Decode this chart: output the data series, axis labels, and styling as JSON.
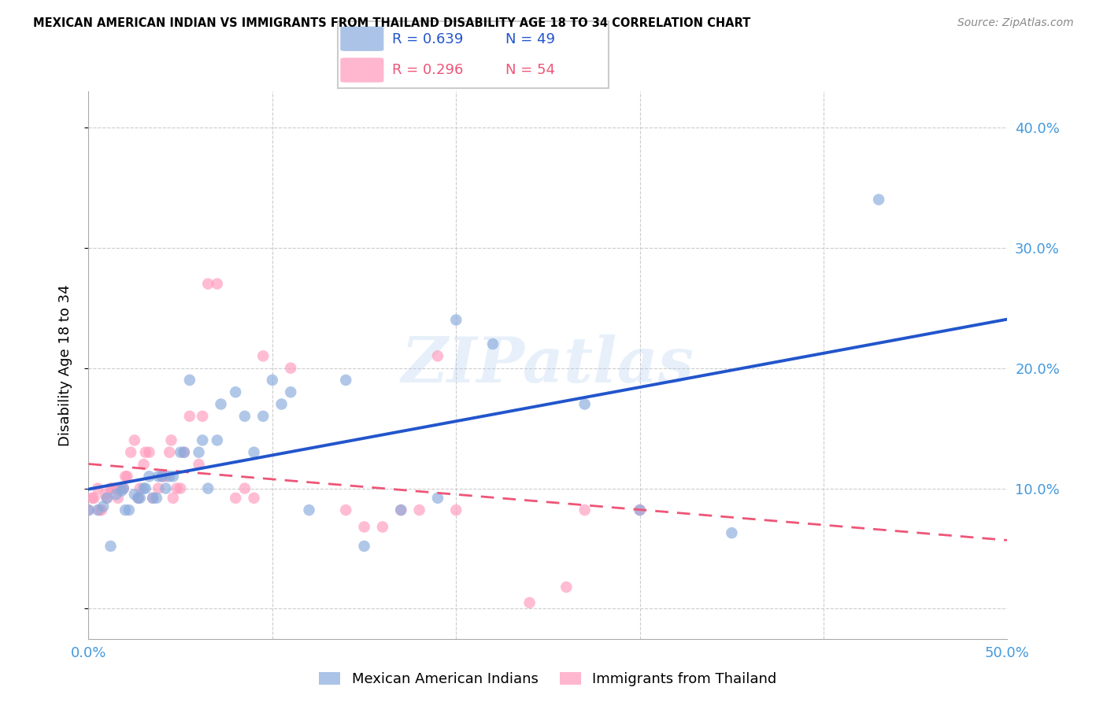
{
  "title": "MEXICAN AMERICAN INDIAN VS IMMIGRANTS FROM THAILAND DISABILITY AGE 18 TO 34 CORRELATION CHART",
  "source": "Source: ZipAtlas.com",
  "ylabel": "Disability Age 18 to 34",
  "xlim": [
    0.0,
    0.5
  ],
  "ylim": [
    -0.025,
    0.43
  ],
  "ytick_vals": [
    0.0,
    0.1,
    0.2,
    0.3,
    0.4
  ],
  "ytick_labels": [
    "",
    "10.0%",
    "20.0%",
    "30.0%",
    "40.0%"
  ],
  "xtick_vals": [
    0.0,
    0.1,
    0.2,
    0.3,
    0.4,
    0.5
  ],
  "xtick_labels": [
    "0.0%",
    "",
    "",
    "",
    "",
    "50.0%"
  ],
  "legend1_r": "0.639",
  "legend1_n": "49",
  "legend2_r": "0.296",
  "legend2_n": "54",
  "blue_color": "#88AADD",
  "pink_color": "#FF99BB",
  "blue_line_color": "#2255CC",
  "pink_line_color": "#EE5577",
  "tick_color": "#4499DD",
  "watermark": "ZIPatlas",
  "series1_label": "Mexican American Indians",
  "series2_label": "Immigrants from Thailand",
  "blue_x": [
    0.0,
    0.005,
    0.008,
    0.01,
    0.012,
    0.015,
    0.018,
    0.019,
    0.02,
    0.022,
    0.025,
    0.027,
    0.028,
    0.03,
    0.031,
    0.033,
    0.035,
    0.037,
    0.038,
    0.04,
    0.042,
    0.044,
    0.046,
    0.05,
    0.052,
    0.055,
    0.06,
    0.062,
    0.065,
    0.07,
    0.072,
    0.08,
    0.085,
    0.09,
    0.095,
    0.1,
    0.105,
    0.11,
    0.12,
    0.14,
    0.15,
    0.17,
    0.19,
    0.2,
    0.22,
    0.27,
    0.3,
    0.35,
    0.43
  ],
  "blue_y": [
    0.082,
    0.082,
    0.085,
    0.092,
    0.052,
    0.095,
    0.098,
    0.1,
    0.082,
    0.082,
    0.095,
    0.092,
    0.092,
    0.1,
    0.1,
    0.11,
    0.092,
    0.092,
    0.11,
    0.11,
    0.1,
    0.11,
    0.11,
    0.13,
    0.13,
    0.19,
    0.13,
    0.14,
    0.1,
    0.14,
    0.17,
    0.18,
    0.16,
    0.13,
    0.16,
    0.19,
    0.17,
    0.18,
    0.082,
    0.19,
    0.052,
    0.082,
    0.092,
    0.24,
    0.22,
    0.17,
    0.082,
    0.063,
    0.34
  ],
  "pink_x": [
    0.0,
    0.002,
    0.003,
    0.005,
    0.006,
    0.007,
    0.009,
    0.01,
    0.012,
    0.013,
    0.015,
    0.016,
    0.018,
    0.019,
    0.02,
    0.021,
    0.023,
    0.025,
    0.027,
    0.028,
    0.03,
    0.031,
    0.033,
    0.035,
    0.038,
    0.04,
    0.042,
    0.044,
    0.045,
    0.046,
    0.048,
    0.05,
    0.052,
    0.055,
    0.06,
    0.062,
    0.065,
    0.07,
    0.08,
    0.085,
    0.09,
    0.095,
    0.11,
    0.14,
    0.15,
    0.16,
    0.17,
    0.18,
    0.19,
    0.2,
    0.24,
    0.26,
    0.27,
    0.3
  ],
  "pink_y": [
    0.082,
    0.092,
    0.092,
    0.1,
    0.082,
    0.082,
    0.095,
    0.092,
    0.1,
    0.1,
    0.1,
    0.092,
    0.1,
    0.1,
    0.11,
    0.11,
    0.13,
    0.14,
    0.092,
    0.1,
    0.12,
    0.13,
    0.13,
    0.092,
    0.1,
    0.11,
    0.11,
    0.13,
    0.14,
    0.092,
    0.1,
    0.1,
    0.13,
    0.16,
    0.12,
    0.16,
    0.27,
    0.27,
    0.092,
    0.1,
    0.092,
    0.21,
    0.2,
    0.082,
    0.068,
    0.068,
    0.082,
    0.082,
    0.21,
    0.082,
    0.005,
    0.018,
    0.082,
    0.082
  ]
}
